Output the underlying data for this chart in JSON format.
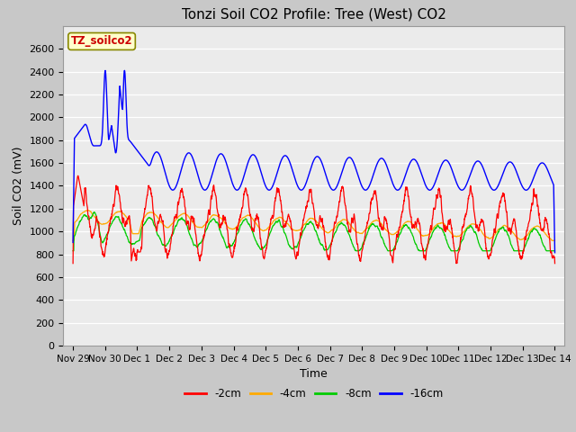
{
  "title": "Tonzi Soil CO2 Profile: Tree (West) CO2",
  "ylabel": "Soil CO2 (mV)",
  "xlabel": "Time",
  "ylim": [
    0,
    2800
  ],
  "yticks": [
    0,
    200,
    400,
    600,
    800,
    1000,
    1200,
    1400,
    1600,
    1800,
    2000,
    2200,
    2400,
    2600
  ],
  "xtick_labels": [
    "Nov 29",
    "Nov 30",
    "Dec 1",
    "Dec 2",
    "Dec 3",
    "Dec 4",
    "Dec 5",
    "Dec 6",
    "Dec 7",
    "Dec 8",
    "Dec 9",
    "Dec 10",
    "Dec 11",
    "Dec 12",
    "Dec 13",
    "Dec 14"
  ],
  "legend_labels": [
    "-2cm",
    "-4cm",
    "-8cm",
    "-16cm"
  ],
  "legend_colors": [
    "#ff0000",
    "#ffaa00",
    "#00cc00",
    "#0000ff"
  ],
  "line_colors": [
    "#ff0000",
    "#ffaa00",
    "#00cc00",
    "#0000ff"
  ],
  "watermark_text": "TZ_soilco2",
  "watermark_bg": "#ffffcc",
  "watermark_border": "#888800",
  "title_fontsize": 11,
  "axis_fontsize": 9,
  "tick_fontsize": 8
}
